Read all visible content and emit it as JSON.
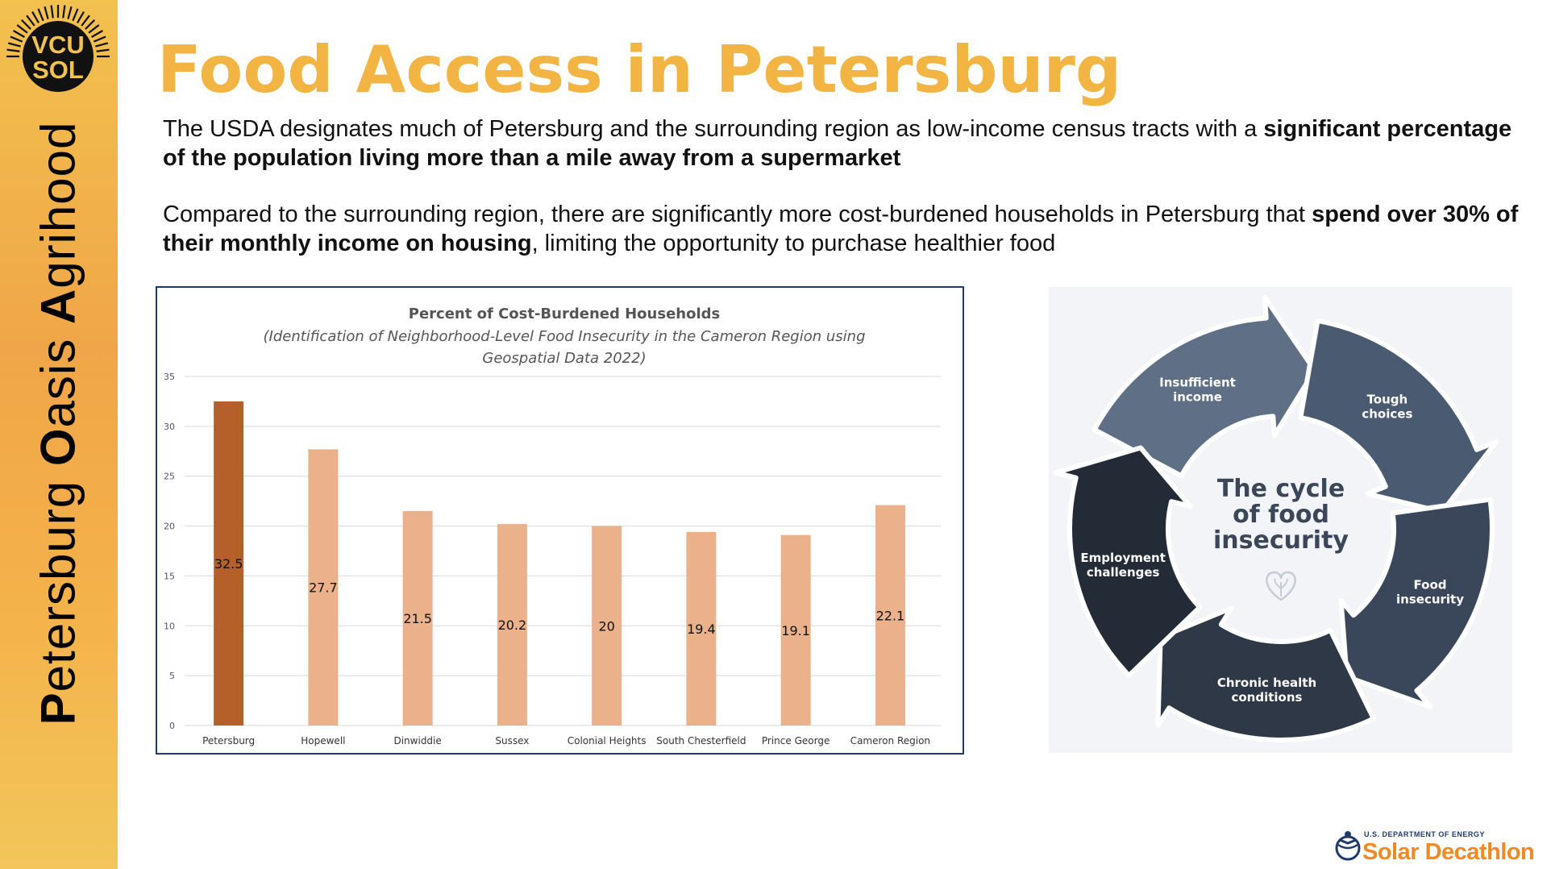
{
  "sidebar": {
    "logo_text_line1": "VCU",
    "logo_text_line2": "SOL",
    "title_parts": [
      {
        "bold": "P",
        "rest": "etersburg "
      },
      {
        "bold": "O",
        "rest": "asis "
      },
      {
        "bold": "A",
        "rest": "grihood"
      }
    ]
  },
  "title": "Food Access in Petersburg",
  "paragraphs": [
    {
      "normal": "The USDA designates much of Petersburg and the surrounding region as low-income census tracts with a ",
      "bold": "significant percentage of the population living more than a mile away from a supermarket",
      "after": ""
    },
    {
      "normal": "Compared to the surrounding region, there are significantly more cost-burdened households in Petersburg that ",
      "bold": "spend over 30% of their monthly income on housing",
      "after": ", limiting the opportunity to purchase healthier food"
    }
  ],
  "chart_data": {
    "type": "bar",
    "title": "Percent of Cost-Burdened Households",
    "subtitle_line1": "(Identification of Neighborhood-Level Food Insecurity in the Cameron Region using",
    "subtitle_line2": "Geospatial Data 2022)",
    "categories": [
      "Petersburg",
      "Hopewell",
      "Dinwiddie",
      "Sussex",
      "Colonial Heights",
      "South Chesterfield",
      "Prince George",
      "Cameron Region"
    ],
    "values": [
      32.5,
      27.7,
      21.5,
      20.2,
      20,
      19.4,
      19.1,
      22.1
    ],
    "value_labels": [
      "32.5",
      "27.7",
      "21.5",
      "20.2",
      "20",
      "19.4",
      "19.1",
      "22.1"
    ],
    "yticks": [
      "0",
      "5",
      "10",
      "15",
      "20",
      "25",
      "30",
      "35"
    ],
    "ylim": [
      0,
      35
    ],
    "grid": true,
    "colors": {
      "highlight": "#b5602a",
      "default": "#eab18a",
      "grid": "#d9d9d9"
    }
  },
  "cycle": {
    "center_line1": "The cycle",
    "center_line2": "of food",
    "center_line3": "insecurity",
    "center_icon": "heart-leaf-icon",
    "steps": [
      {
        "line1": "Insufficient",
        "line2": "income",
        "color": "#5f7086"
      },
      {
        "line1": "Tough",
        "line2": "choices",
        "color": "#4a5a71"
      },
      {
        "line1": "Food",
        "line2": "insecurity",
        "color": "#3a475a"
      },
      {
        "line1": "Chronic health",
        "line2": "conditions",
        "color": "#2e3846"
      },
      {
        "line1": "Employment",
        "line2": "challenges",
        "color": "#232b37"
      }
    ]
  },
  "footer": {
    "sd_small": "U.S. DEPARTMENT OF ENERGY",
    "sd_big": "Solar Decathlon",
    "sd_icon": "globe-figure-icon"
  }
}
